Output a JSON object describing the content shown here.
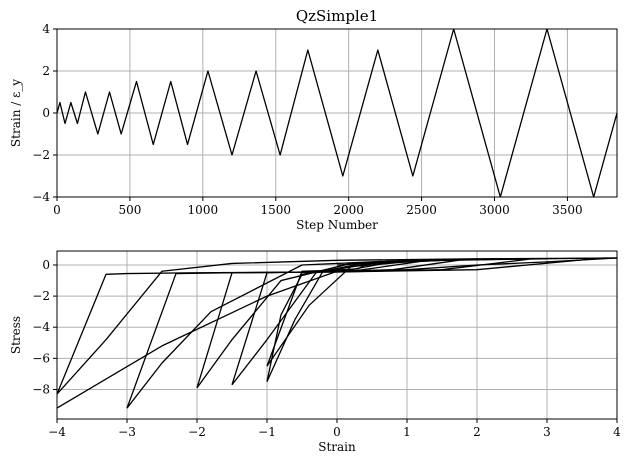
{
  "chart_data": [
    {
      "type": "line",
      "title": "QzSimple1",
      "xlabel": "Step Number",
      "ylabel": "Strain / ε_y",
      "xlim": [
        0,
        3840
      ],
      "ylim": [
        -4,
        4
      ],
      "xticks": [
        0,
        500,
        1000,
        1500,
        2000,
        2500,
        3000,
        3500
      ],
      "yticks": [
        -4,
        -2,
        0,
        2,
        4
      ],
      "grid": true,
      "series": [
        {
          "color": "#000000",
          "x": [
            0,
            20,
            55,
            95,
            140,
            195,
            280,
            360,
            440,
            545,
            660,
            780,
            895,
            1035,
            1200,
            1365,
            1530,
            1720,
            1960,
            2200,
            2440,
            2720,
            3040,
            3360,
            3680,
            3840
          ],
          "y": [
            0,
            0.5,
            -0.5,
            0.5,
            -0.5,
            1,
            -1,
            1,
            -1,
            1.5,
            -1.5,
            1.5,
            -1.5,
            2,
            -2,
            2,
            -2,
            3,
            -3,
            3,
            -3,
            4,
            -4,
            4,
            -4,
            0
          ]
        }
      ]
    },
    {
      "type": "line",
      "title": "",
      "xlabel": "Strain",
      "ylabel": "Stress",
      "xlim": [
        -4,
        4
      ],
      "ylim": [
        -9.9,
        0.9
      ],
      "xticks": [
        -4,
        -3,
        -2,
        -1,
        0,
        1,
        2,
        3,
        4
      ],
      "yticks": [
        -8,
        -6,
        -4,
        -2,
        0
      ],
      "grid": true,
      "series": [
        {
          "color": "#000000",
          "x": [
            0,
            0.5,
            0.45,
            0.3,
            -0.1,
            -0.5,
            -0.8,
            -1.0
          ],
          "y": [
            0,
            0.12,
            0.12,
            -0.25,
            -0.35,
            -0.6,
            -3.2,
            -7.5
          ]
        },
        {
          "color": "#000000",
          "x": [
            -1.0,
            -0.6,
            -0.2,
            0.3,
            0.8,
            1.0,
            0.85,
            0.2,
            -0.5,
            -1.0
          ],
          "y": [
            -7.5,
            -3.5,
            -0.4,
            0.05,
            0.18,
            0.25,
            0.25,
            -0.3,
            -0.4,
            -6.5
          ]
        },
        {
          "color": "#000000",
          "x": [
            -1.0,
            -0.4,
            0.2,
            1.0,
            1.5,
            1.3,
            0.3,
            -0.5,
            -1.0,
            -1.5
          ],
          "y": [
            -6.5,
            -2.6,
            -0.1,
            0.2,
            0.3,
            0.3,
            -0.35,
            -0.45,
            -0.5,
            -7.7
          ]
        },
        {
          "color": "#000000",
          "x": [
            -1.5,
            -1.0,
            -0.3,
            0.5,
            1.5,
            2.0,
            1.8,
            0.8,
            -0.3,
            -1.5,
            -2.0
          ],
          "y": [
            -7.7,
            -4.8,
            -0.5,
            0.1,
            0.3,
            0.35,
            0.35,
            -0.3,
            -0.45,
            -0.5,
            -7.9
          ]
        },
        {
          "color": "#000000",
          "x": [
            -2.0,
            -1.5,
            -0.8,
            0.2,
            1.5,
            3.0,
            2.8,
            1.5,
            0,
            -1.5,
            -2.3,
            -3.0
          ],
          "y": [
            -7.9,
            -4.8,
            -1.0,
            0.1,
            0.3,
            0.4,
            0.4,
            -0.3,
            -0.45,
            -0.5,
            -0.55,
            -9.2
          ]
        },
        {
          "color": "#000000",
          "x": [
            -3.0,
            -2.5,
            -1.8,
            -0.5,
            1.0,
            3.0,
            4.0,
            3.8,
            2.0,
            0,
            -2.0,
            -3.0,
            -3.3,
            -4.0
          ],
          "y": [
            -9.2,
            -6.3,
            -3.0,
            0.0,
            0.3,
            0.4,
            0.45,
            0.45,
            -0.3,
            -0.45,
            -0.5,
            -0.55,
            -0.6,
            -8.3
          ]
        },
        {
          "color": "#000000",
          "x": [
            -4.0,
            -3.3,
            -2.5,
            -1.5,
            0,
            2.0,
            4.0
          ],
          "y": [
            -8.3,
            -4.8,
            -0.4,
            0.1,
            0.3,
            0.4,
            0.45
          ]
        },
        {
          "color": "#000000",
          "x": [
            -4.0,
            -3.4,
            -2.5,
            -1.0,
            0,
            1.0,
            2.0,
            3.0,
            4.0
          ],
          "y": [
            -9.2,
            -7.6,
            -5.2,
            -2.0,
            -0.4,
            -0.3,
            0.0,
            0.2,
            0.45
          ]
        }
      ]
    }
  ]
}
